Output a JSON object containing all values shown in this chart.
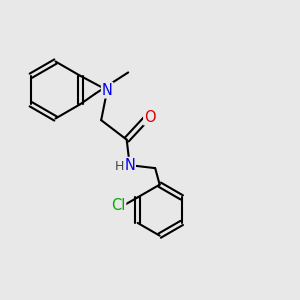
{
  "background_color": "#e8e8e8",
  "atom_colors": {
    "N": "#0000ee",
    "O": "#dd0000",
    "Cl": "#00aa00",
    "C": "#000000",
    "H": "#444444"
  },
  "bond_color": "#000000",
  "bond_width": 1.5,
  "font_size_atom": 10.5,
  "font_size_h": 9
}
